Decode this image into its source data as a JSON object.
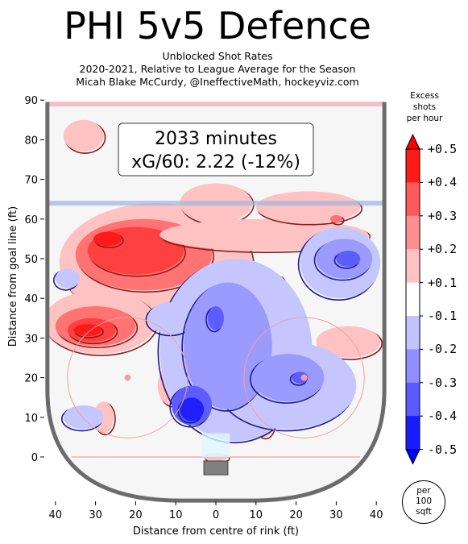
{
  "title": "PHI 5v5 Defence",
  "subtitle_lines": [
    "Unblocked Shot Rates",
    "2020-2021, Relative to League Average for the Season",
    "Micah Blake McCurdy, @IneffectiveMath, hockeyviz.com"
  ],
  "annotation": {
    "line1": "2033 minutes",
    "line2": "xG/60: 2.22 (-12%)"
  },
  "colorbar": {
    "title_lines": [
      "Excess",
      "shots",
      "per hour"
    ],
    "tick_labels": [
      "+0.5",
      "+0.4",
      "+0.3",
      "+0.2",
      "+0.1",
      "-0.1",
      "-0.2",
      "-0.3",
      "-0.4",
      "-0.5"
    ],
    "levels": [
      0.5,
      0.4,
      0.3,
      0.2,
      0.1,
      -0.1,
      -0.2,
      -0.3,
      -0.4,
      -0.5
    ],
    "colors": [
      "#ff1a1a",
      "#ff5a5a",
      "#ff8f8f",
      "#ffc2c2",
      "#ffffff",
      "#c2c2ff",
      "#8f8fff",
      "#5a5aff",
      "#1a1aff"
    ]
  },
  "unit_badge": [
    "per",
    "100",
    "sqft"
  ],
  "chart_data": {
    "type": "heatmap",
    "xlabel": "Distance from centre of rink (ft)",
    "ylabel": "Distance from goal line (ft)",
    "xlim": [
      -42,
      42
    ],
    "ylim": [
      -11,
      90
    ],
    "xticks": [
      -40,
      -30,
      -20,
      -10,
      0,
      10,
      20,
      30,
      40
    ],
    "xtick_labels": [
      "40",
      "30",
      "20",
      "10",
      "0",
      "10",
      "20",
      "30",
      "40"
    ],
    "yticks": [
      0,
      10,
      20,
      30,
      40,
      50,
      60,
      70,
      80,
      90
    ],
    "blue_line_y": 64,
    "red_line_y": 89,
    "faceoff_circles": [
      {
        "x": -22,
        "y": 20,
        "r": 15
      },
      {
        "x": 22,
        "y": 20,
        "r": 15
      }
    ],
    "regions": [
      {
        "level": 0.2,
        "x": -33,
        "y": 81,
        "rx": 5,
        "ry": 4
      },
      {
        "level": 0.2,
        "x": -15,
        "y": 49,
        "rx": 24,
        "ry": 15
      },
      {
        "level": 0.3,
        "x": -18,
        "y": 51,
        "rx": 17,
        "ry": 9
      },
      {
        "level": 0.4,
        "x": -20,
        "y": 52,
        "rx": 12,
        "ry": 6
      },
      {
        "level": 0.5,
        "x": -27,
        "y": 55,
        "rx": 3.5,
        "ry": 1.8
      },
      {
        "level": 0.2,
        "x": 0,
        "y": 64,
        "rx": 9,
        "ry": 5
      },
      {
        "level": 0.2,
        "x": 12,
        "y": 56,
        "rx": 26,
        "ry": 4
      },
      {
        "level": 0.2,
        "x": 23,
        "y": 63,
        "rx": 13,
        "ry": 4
      },
      {
        "level": 0.3,
        "x": 30,
        "y": 60,
        "rx": 1.5,
        "ry": 1
      },
      {
        "level": 0.2,
        "x": -29,
        "y": 34,
        "rx": 14,
        "ry": 8
      },
      {
        "level": 0.3,
        "x": -30,
        "y": 33,
        "rx": 10,
        "ry": 5
      },
      {
        "level": 0.4,
        "x": -31,
        "y": 32,
        "rx": 6,
        "ry": 3
      },
      {
        "level": 0.5,
        "x": -32,
        "y": 32,
        "rx": 3.5,
        "ry": 1.5
      },
      {
        "level": 0.2,
        "x": -11,
        "y": 18,
        "rx": 3.5,
        "ry": 5
      },
      {
        "level": 0.2,
        "x": -28,
        "y": 10,
        "rx": 2.5,
        "ry": 4
      },
      {
        "level": 0.2,
        "x": 12,
        "y": 9,
        "rx": 2.5,
        "ry": 4
      },
      {
        "level": 0.2,
        "x": 33,
        "y": 29,
        "rx": 8,
        "ry": 4
      },
      {
        "level": 0.2,
        "x": 15,
        "y": 44,
        "rx": 2,
        "ry": 2
      },
      {
        "level": 0.2,
        "x": 0,
        "y": 0,
        "rx": 3,
        "ry": 1
      },
      {
        "level": -0.1,
        "x": -37,
        "y": 45,
        "rx": 3,
        "ry": 2.5
      },
      {
        "level": -0.1,
        "x": -33,
        "y": 10,
        "rx": 5,
        "ry": 3
      },
      {
        "level": -0.1,
        "x": 31,
        "y": 49,
        "rx": 10,
        "ry": 9
      },
      {
        "level": -0.2,
        "x": 32,
        "y": 50,
        "rx": 7,
        "ry": 5
      },
      {
        "level": -0.3,
        "x": 33,
        "y": 50,
        "rx": 3,
        "ry": 2
      },
      {
        "level": -0.1,
        "x": 5,
        "y": 27,
        "rx": 19,
        "ry": 23
      },
      {
        "level": -0.1,
        "x": 18,
        "y": 18,
        "rx": 17,
        "ry": 11
      },
      {
        "level": -0.1,
        "x": -11,
        "y": 35,
        "rx": 6,
        "ry": 4
      },
      {
        "level": -0.2,
        "x": 3,
        "y": 28,
        "rx": 11,
        "ry": 16
      },
      {
        "level": -0.2,
        "x": 18,
        "y": 20,
        "rx": 9,
        "ry": 6
      },
      {
        "level": -0.3,
        "x": 0,
        "y": 35,
        "rx": 2,
        "ry": 3
      },
      {
        "level": -0.3,
        "x": -6,
        "y": 13,
        "rx": 5,
        "ry": 5
      },
      {
        "level": -0.4,
        "x": -6,
        "y": 12,
        "rx": 3,
        "ry": 3
      },
      {
        "level": -0.3,
        "x": 21,
        "y": 20,
        "rx": 2,
        "ry": 1.5
      }
    ]
  }
}
